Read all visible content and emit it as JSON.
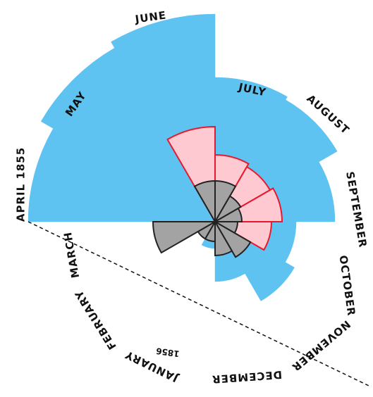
{
  "chart_data": {
    "type": "polar-area",
    "title": "",
    "note": "",
    "year_labels": [
      "1855",
      "1856"
    ],
    "months": [
      "APRIL 1855",
      "MAY",
      "JUNE",
      "JULY",
      "AUGUST",
      "SEPTEMBER",
      "OCTOBER",
      "NOVEMBER",
      "DECEMBER",
      "JANUARY",
      "FEBRUARY",
      "MARCH"
    ],
    "series": [
      {
        "color": "#5fc3f2",
        "stroke": "#5fc3f2",
        "values": [
          265,
          285,
          295,
          205,
          200,
          170,
          115,
          130,
          85,
          38,
          8,
          30
        ]
      },
      {
        "color": "#ffc9d1",
        "stroke": "#e8192c",
        "values": [
          0,
          0,
          135,
          95,
          90,
          95,
          80,
          48,
          30,
          20,
          8,
          28
        ]
      },
      {
        "color": "#a3a3a3",
        "stroke": "#222222",
        "values": [
          0,
          0,
          58,
          58,
          42,
          38,
          32,
          58,
          48,
          28,
          28,
          88
        ]
      }
    ],
    "separator_line": true
  }
}
